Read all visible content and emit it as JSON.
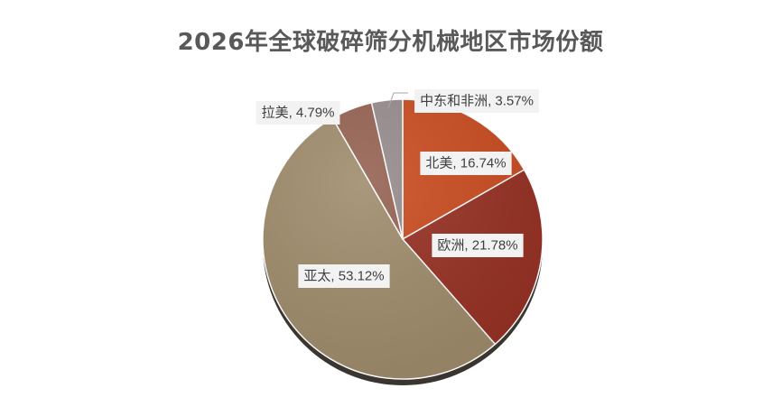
{
  "chart_data": {
    "type": "pie",
    "title": "2026年全球破碎筛分机械地区市场份额",
    "slices": [
      {
        "name": "北美",
        "value": 16.74,
        "label": "北美, 16.74%",
        "color": "#c94a1e"
      },
      {
        "name": "欧洲",
        "value": 21.78,
        "label": "欧洲, 21.78%",
        "color": "#962f22"
      },
      {
        "name": "亚太",
        "value": 53.12,
        "label": "亚太, 53.12%",
        "color": "#9e8a6a"
      },
      {
        "name": "拉美",
        "value": 4.79,
        "label": "拉美, 4.79%",
        "color": "#946050"
      },
      {
        "name": "中东和非洲",
        "value": 3.57,
        "label": "中东和非洲, 3.57%",
        "color": "#958a8c"
      }
    ],
    "start_angle_deg": 0,
    "direction": "clockwise",
    "legend": "none",
    "data_labels": true
  }
}
